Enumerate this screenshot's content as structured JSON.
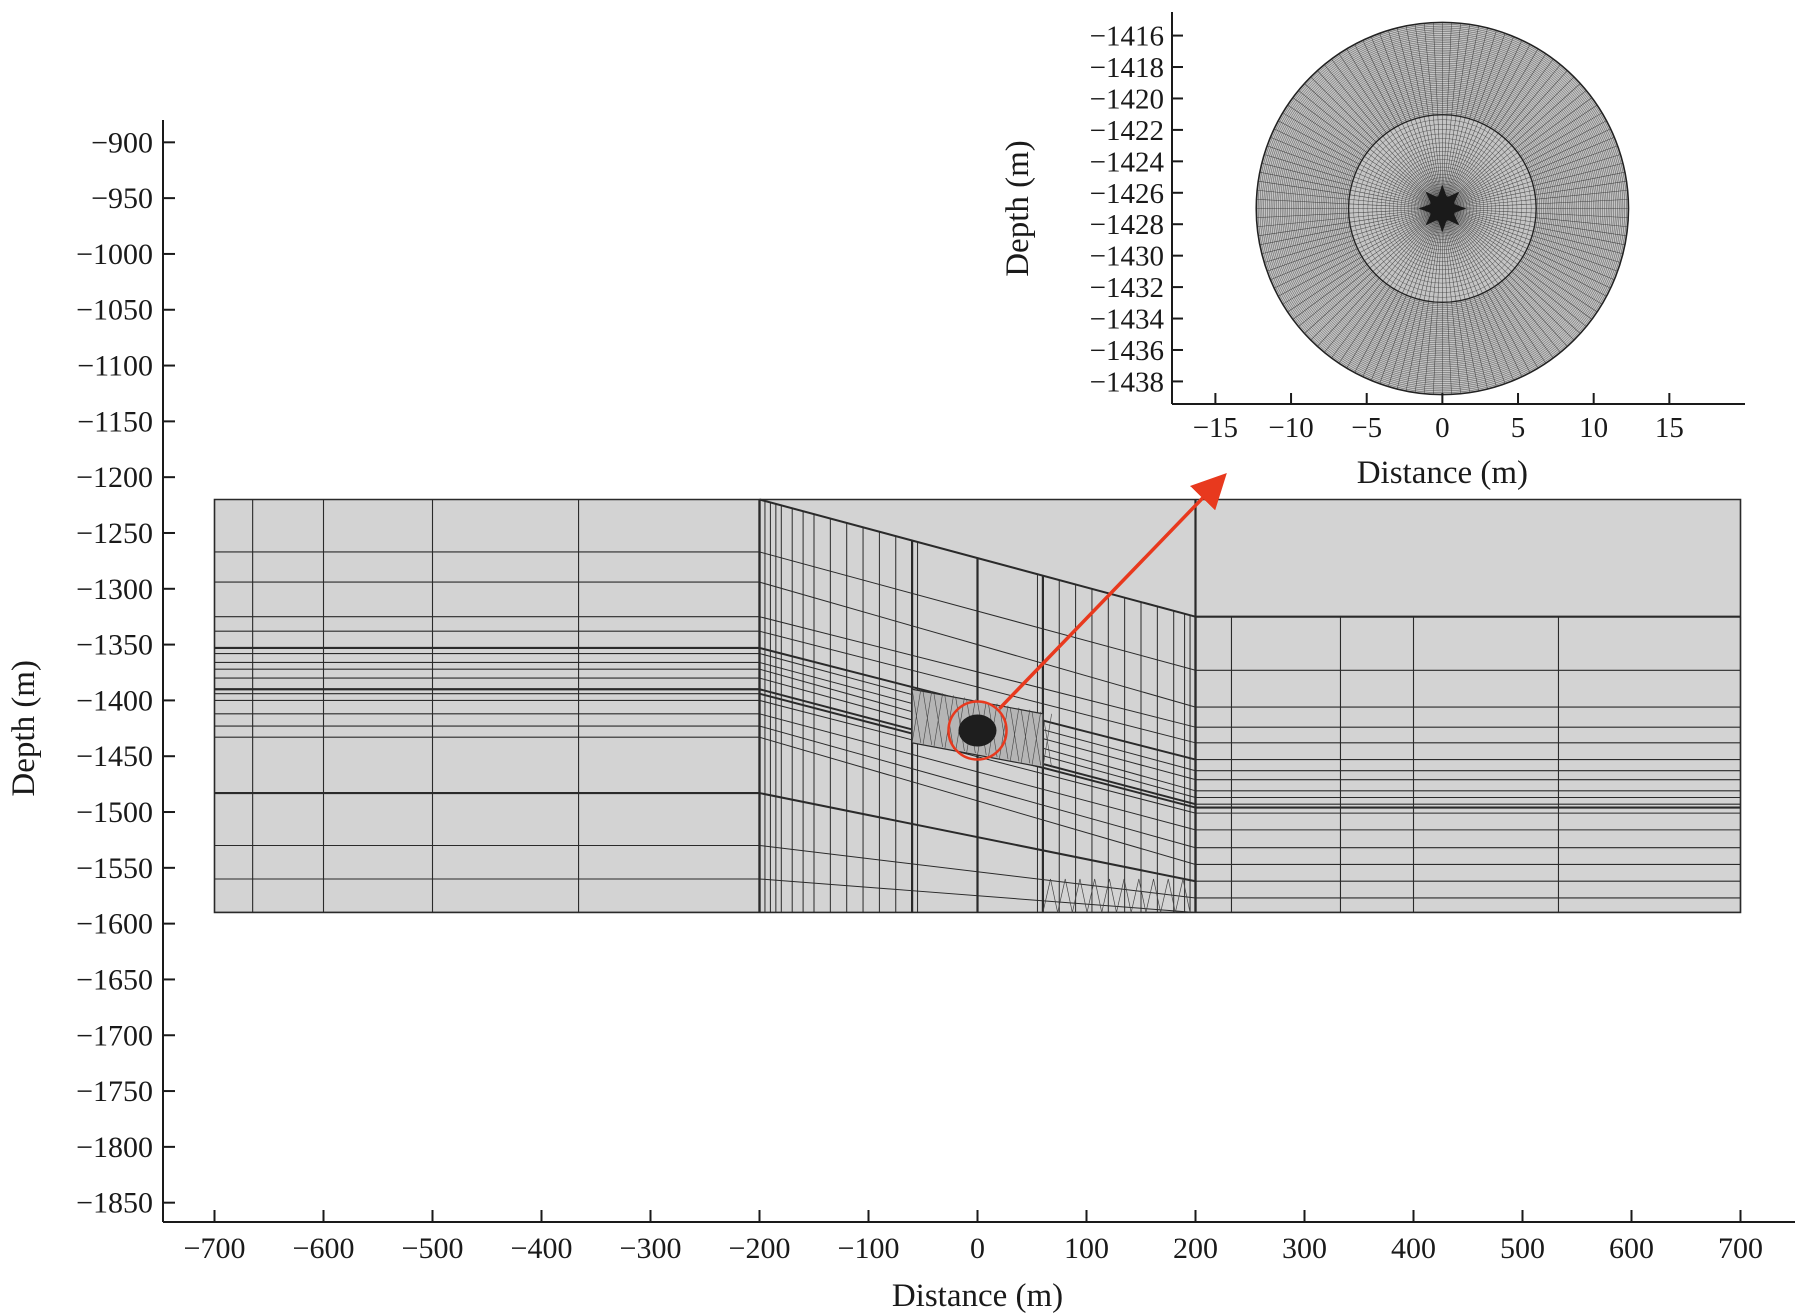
{
  "main_plot": {
    "xlabel": "Distance (m)",
    "ylabel": "Depth (m)",
    "xlim": [
      -750,
      750
    ],
    "ylim": [
      -1870,
      -880
    ],
    "x_ticks": [
      -700,
      -600,
      -500,
      -400,
      -300,
      -200,
      -100,
      0,
      100,
      200,
      300,
      400,
      500,
      600,
      700
    ],
    "y_ticks": [
      -900,
      -950,
      -1000,
      -1050,
      -1100,
      -1150,
      -1200,
      -1250,
      -1300,
      -1350,
      -1400,
      -1450,
      -1500,
      -1550,
      -1600,
      -1650,
      -1700,
      -1750,
      -1800,
      -1850
    ],
    "mesh": {
      "fill_color": "#d3d3d3",
      "line_color": "#2a2a2a",
      "x_range": [
        -700,
        700
      ],
      "top_depth": -1220,
      "bottom_depth": -1590,
      "left_block": {
        "x_range": [
          -700,
          -200
        ],
        "vertical_lines": [
          -665,
          -600,
          -500,
          -366,
          -200
        ],
        "horizontal_lines": [
          -1220,
          -1267,
          -1294,
          -1325,
          -1338,
          -1353,
          -1358,
          -1366,
          -1372,
          -1380,
          -1390,
          -1394,
          -1400,
          -1412,
          -1423,
          -1433,
          -1483,
          -1530,
          -1560,
          -1590
        ],
        "bold_lines": [
          -1353,
          -1390,
          -1483
        ]
      },
      "right_block": {
        "x_range": [
          200,
          700
        ],
        "vertical_lines": [
          200,
          233,
          333,
          400,
          533,
          700
        ],
        "horizontal_lines": [
          -1325,
          -1373,
          -1406,
          -1424,
          -1438,
          -1453,
          -1463,
          -1471,
          -1481,
          -1487,
          -1493,
          -1496,
          -1501,
          -1516,
          -1532,
          -1547,
          -1562,
          -1577,
          -1590
        ],
        "bold_lines": [
          -1325,
          -1496
        ]
      },
      "transition_zone": {
        "x_range": [
          -200,
          200
        ],
        "top_left_depth": -1220,
        "top_right_depth": -1325,
        "vertical_lines": [
          -200,
          -195,
          -190,
          -185,
          -180,
          -170,
          -160,
          -150,
          -135,
          -120,
          -105,
          -90,
          -75,
          -60,
          -55,
          0,
          55,
          60,
          75,
          90,
          105,
          120,
          135,
          150,
          165,
          180,
          190,
          195,
          200
        ],
        "bold_verticals": [
          -200,
          -60,
          0,
          60,
          200
        ]
      },
      "refined_zone": {
        "x_range": [
          -60,
          60
        ],
        "depth_range": [
          -1390,
          -1460
        ],
        "color": "#b5b5b5"
      },
      "well_center": [
        0,
        -1427
      ]
    },
    "highlight_circle_color": "#e8391e",
    "arrow_color": "#e8391e"
  },
  "inset": {
    "xlabel": "Distance (m)",
    "ylabel": "Depth (m)",
    "xlim": [
      -18,
      20
    ],
    "ylim": [
      -1439.5,
      -1414.5
    ],
    "x_ticks": [
      -15,
      -10,
      -5,
      0,
      5,
      10,
      15
    ],
    "y_ticks": [
      -1416,
      -1418,
      -1420,
      -1422,
      -1424,
      -1426,
      -1428,
      -1430,
      -1432,
      -1434,
      -1436,
      -1438
    ],
    "disk": {
      "center": [
        0,
        -1427
      ],
      "outer_radius": 12.3,
      "inner_radius": 6.2,
      "radial_lines": 128,
      "outer_rings": 50,
      "inner_rings": 30,
      "fill_color": "#c4c4c4",
      "line_color": "#303030"
    }
  }
}
